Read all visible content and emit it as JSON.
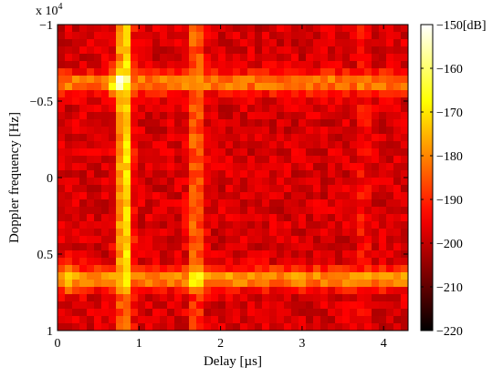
{
  "chart_data": {
    "type": "heatmap",
    "title": "",
    "xlabel": "Delay [µs]",
    "ylabel": "Doppler frequency [Hz]",
    "y_multiplier": "x 10",
    "y_multiplier_exponent": "4",
    "xlim": [
      0,
      4.3
    ],
    "ylim": [
      -10000,
      10000
    ],
    "y_reversed": true,
    "x_ticks": [
      0,
      1,
      2,
      3,
      4
    ],
    "x_tick_labels": [
      "0",
      "1",
      "2",
      "3",
      "4"
    ],
    "y_ticks": [
      -10000,
      -5000,
      0,
      5000,
      10000
    ],
    "y_tick_labels": [
      "−1",
      "−0.5",
      "0",
      "0.5",
      "1"
    ],
    "colorbar": {
      "range": [
        -220,
        -150
      ],
      "ticks": [
        -150,
        -160,
        -170,
        -180,
        -190,
        -200,
        -210,
        -220
      ],
      "tick_labels": [
        "−150[dB]",
        "−160",
        "−170",
        "−180",
        "−190",
        "−200",
        "−210",
        "−220"
      ],
      "colormap": "hot"
    },
    "background_level": -198,
    "features": [
      {
        "kind": "delay_ridge",
        "x": 0.82,
        "peak": -168
      },
      {
        "kind": "delay_ridge",
        "x": 1.7,
        "peak": -182
      },
      {
        "kind": "delay_ridge",
        "x": 3.75,
        "peak": -193
      },
      {
        "kind": "doppler_ridge",
        "y": -6200,
        "peak": -180
      },
      {
        "kind": "doppler_ridge",
        "y": 6600,
        "peak": -178
      },
      {
        "kind": "peak",
        "x": 0.78,
        "y": -6200,
        "level": -151
      },
      {
        "kind": "peak",
        "x": 1.7,
        "y": 6600,
        "level": -166
      },
      {
        "kind": "peak",
        "x": 0.15,
        "y": 6600,
        "level": -170
      }
    ]
  }
}
